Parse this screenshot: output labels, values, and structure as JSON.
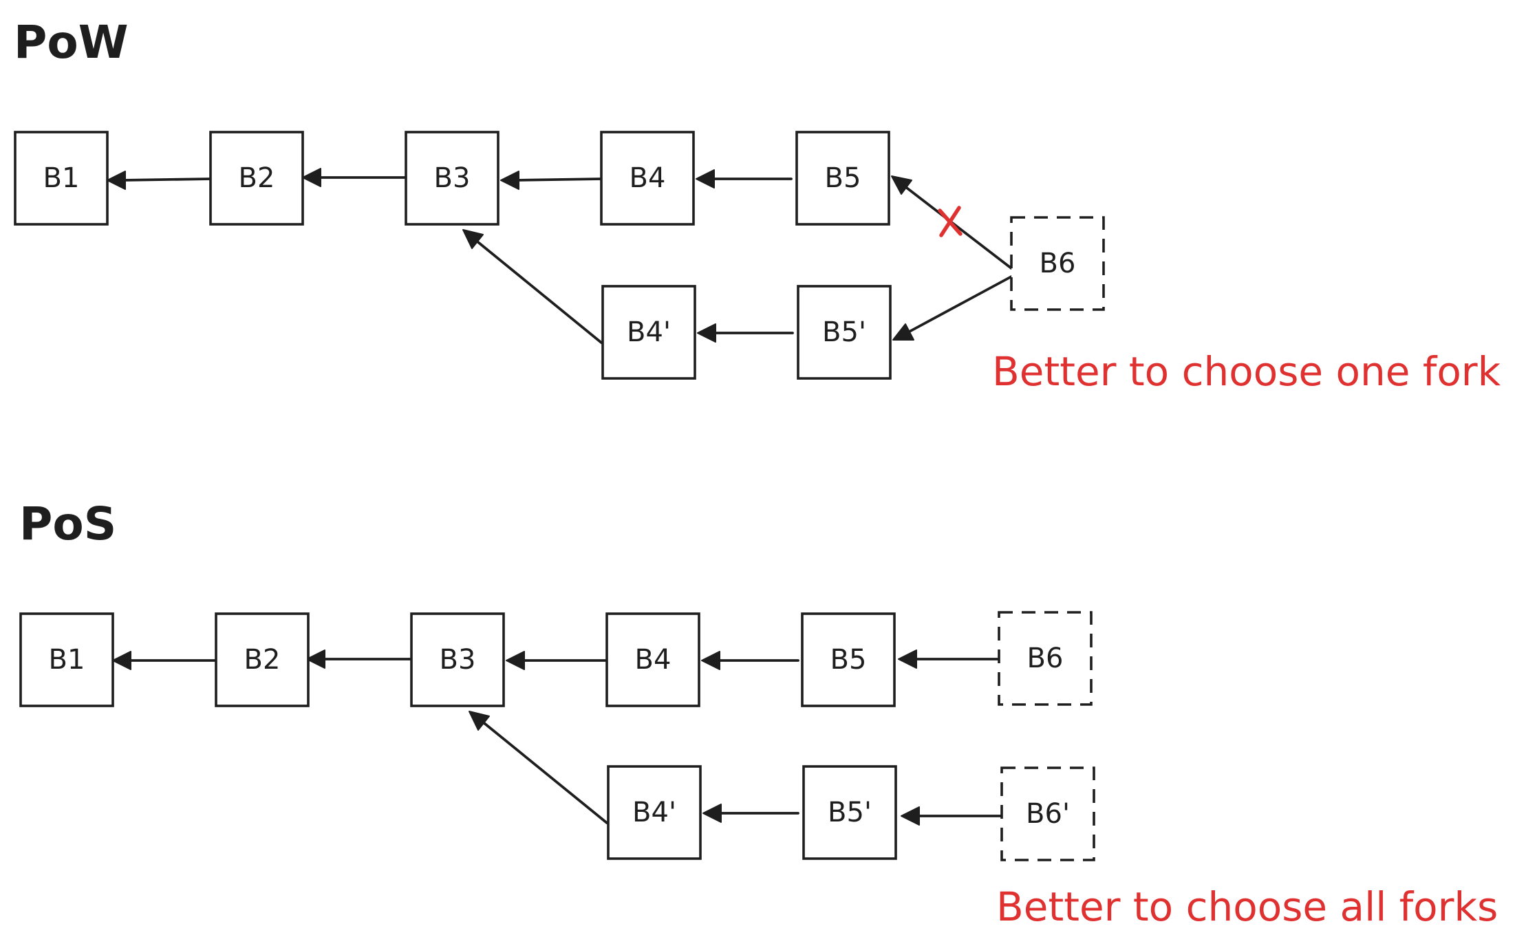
{
  "colors": {
    "ink": "#1e1e1e",
    "accent": "#e03131",
    "background": "#ffffff"
  },
  "pow": {
    "title": "PoW",
    "blocks": {
      "b1": "B1",
      "b2": "B2",
      "b3": "B3",
      "b4": "B4",
      "b5": "B5",
      "b4p": "B4'",
      "b5p": "B5'",
      "b6": "B6"
    },
    "rejected_edge_marker": "x-mark-icon",
    "note": "Better to choose one fork"
  },
  "pos": {
    "title": "PoS",
    "blocks": {
      "b1": "B1",
      "b2": "B2",
      "b3": "B3",
      "b4": "B4",
      "b5": "B5",
      "b6": "B6",
      "b4p": "B4'",
      "b5p": "B5'",
      "b6p": "B6'"
    },
    "note": "Better to choose all forks"
  }
}
